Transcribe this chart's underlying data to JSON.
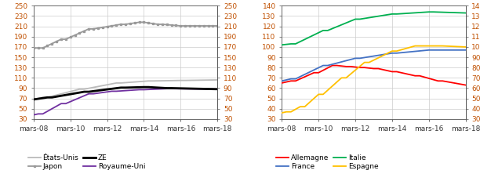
{
  "left_chart": {
    "ylim": [
      30,
      250
    ],
    "yticks": [
      30,
      50,
      70,
      90,
      110,
      130,
      150,
      170,
      190,
      210,
      230,
      250
    ],
    "xtick_labels": [
      "mars-08",
      "mars-10",
      "mars-12",
      "mars-14",
      "mars-16",
      "mars-18"
    ],
    "series_colors": {
      "États-Unis": "#AAAAAA",
      "Japon": "#999999",
      "ZE": "#000000",
      "Royaume-Uni": "#7030A0"
    },
    "legend_order": [
      [
        "États-Unis",
        "Japon"
      ],
      [
        "ZE",
        "Royaume-Uni"
      ]
    ]
  },
  "right_chart": {
    "ylim": [
      30,
      140
    ],
    "yticks": [
      30,
      40,
      50,
      60,
      70,
      80,
      90,
      100,
      110,
      120,
      130,
      140
    ],
    "xtick_labels": [
      "mars-08",
      "mars-10",
      "mars-12",
      "mars-14",
      "mars-16",
      "mars-18"
    ],
    "series_colors": {
      "Allemagne": "#FF0000",
      "France": "#4472C4",
      "Italie": "#00B050",
      "Espagne": "#FFC000"
    },
    "legend_order": [
      [
        "Allemagne",
        "France"
      ],
      [
        "Italie",
        "Espagne"
      ]
    ]
  },
  "tick_label_color": "#C05000",
  "axis_label_color": "#333333",
  "grid_color": "#CCCCCC",
  "background_color": "#FFFFFF",
  "legend_fontsize": 6.5,
  "axis_fontsize": 6.5,
  "tick_fontsize": 6.5
}
